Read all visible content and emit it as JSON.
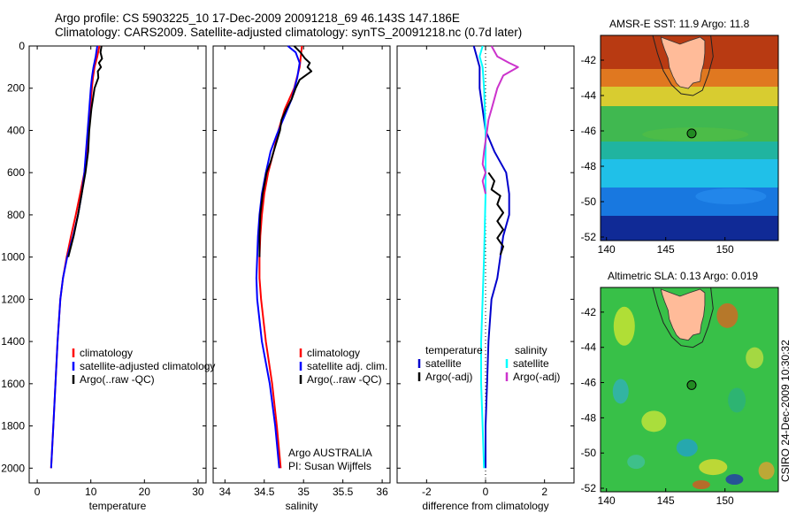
{
  "title_line1": "Argo profile: CS 5903225_10 17-Dec-2009 20091218_69 46.143S 147.186E",
  "title_line2": "Climatology: CARS2009. Satellite-adjusted climatology: synTS_20091218.nc (0.7d later)",
  "side_label": "CSIRO 24-Dec-2009 10:30:32",
  "colors": {
    "climatology": "#ff0000",
    "satellite": "#0000ff",
    "argo": "#000000",
    "temp_satellite_diff": "#0000cc",
    "sal_satellite_diff": "#00ffff",
    "sal_argo_diff": "#cc33cc",
    "argo_marker": "#228b22",
    "land": "#ffbb99"
  },
  "chart_data": [
    {
      "type": "line",
      "name": "temperature-panel",
      "xlabel": "temperature",
      "ylabel": "",
      "xlim": [
        -1.5,
        31.5
      ],
      "ylim": [
        2070,
        0
      ],
      "y_reversed": true,
      "xticks": [
        0,
        10,
        20,
        30
      ],
      "yticks": [
        0,
        200,
        400,
        600,
        800,
        1000,
        1200,
        1400,
        1600,
        1800,
        2000
      ],
      "legend": [
        "climatology",
        "satellite-adjusted climatology",
        "Argo(..raw -QC)"
      ],
      "series": [
        {
          "name": "climatology",
          "color": "#ff0000",
          "points": [
            [
              11.6,
              0
            ],
            [
              11.2,
              50
            ],
            [
              10.7,
              100
            ],
            [
              10.4,
              150
            ],
            [
              10.2,
              200
            ],
            [
              9.9,
              300
            ],
            [
              9.6,
              400
            ],
            [
              9.2,
              500
            ],
            [
              8.8,
              600
            ],
            [
              8.0,
              700
            ],
            [
              7.2,
              800
            ],
            [
              6.3,
              900
            ],
            [
              5.5,
              1000
            ],
            [
              4.8,
              1100
            ],
            [
              4.3,
              1200
            ],
            [
              3.8,
              1400
            ],
            [
              3.4,
              1600
            ],
            [
              3.0,
              1800
            ],
            [
              2.6,
              2000
            ]
          ]
        },
        {
          "name": "satellite-adjusted climatology",
          "color": "#0000ff",
          "points": [
            [
              11.2,
              0
            ],
            [
              10.9,
              50
            ],
            [
              10.5,
              100
            ],
            [
              10.2,
              150
            ],
            [
              10.0,
              200
            ],
            [
              9.7,
              300
            ],
            [
              9.4,
              400
            ],
            [
              9.1,
              500
            ],
            [
              8.8,
              600
            ],
            [
              8.3,
              700
            ],
            [
              7.6,
              800
            ],
            [
              6.7,
              900
            ],
            [
              5.6,
              1000
            ],
            [
              4.8,
              1100
            ],
            [
              4.3,
              1200
            ],
            [
              3.8,
              1400
            ],
            [
              3.4,
              1600
            ],
            [
              3.0,
              1800
            ],
            [
              2.6,
              2000
            ]
          ]
        },
        {
          "name": "Argo(..raw -QC)",
          "color": "#000000",
          "points": [
            [
              12.0,
              0
            ],
            [
              11.8,
              30
            ],
            [
              12.1,
              60
            ],
            [
              11.5,
              80
            ],
            [
              11.9,
              100
            ],
            [
              11.3,
              120
            ],
            [
              11.4,
              150
            ],
            [
              10.7,
              200
            ],
            [
              10.4,
              250
            ],
            [
              10.1,
              300
            ],
            [
              9.7,
              400
            ],
            [
              9.5,
              500
            ],
            [
              9.0,
              600
            ],
            [
              8.3,
              700
            ],
            [
              7.6,
              800
            ],
            [
              6.8,
              900
            ],
            [
              5.8,
              1000
            ]
          ]
        }
      ]
    },
    {
      "type": "line",
      "name": "salinity-panel",
      "xlabel": "salinity",
      "xlim": [
        33.85,
        36.1
      ],
      "ylim": [
        2070,
        0
      ],
      "y_reversed": true,
      "xticks": [
        34,
        34.5,
        35,
        35.5,
        36
      ],
      "legend": [
        "climatology",
        "satellite adj. clim.",
        "Argo(..raw -QC)"
      ],
      "annotation_line1": "Argo AUSTRALIA",
      "annotation_line2": "PI: Susan Wijffels",
      "series": [
        {
          "name": "climatology",
          "color": "#ff0000",
          "points": [
            [
              34.98,
              0
            ],
            [
              34.95,
              100
            ],
            [
              34.88,
              200
            ],
            [
              34.76,
              300
            ],
            [
              34.68,
              400
            ],
            [
              34.62,
              500
            ],
            [
              34.55,
              600
            ],
            [
              34.5,
              700
            ],
            [
              34.47,
              800
            ],
            [
              34.45,
              900
            ],
            [
              34.44,
              1000
            ],
            [
              34.44,
              1100
            ],
            [
              34.46,
              1200
            ],
            [
              34.52,
              1400
            ],
            [
              34.6,
              1600
            ],
            [
              34.66,
              1800
            ],
            [
              34.71,
              2000
            ]
          ]
        },
        {
          "name": "satellite adj. clim.",
          "color": "#0000ff",
          "points": [
            [
              34.8,
              0
            ],
            [
              34.9,
              30
            ],
            [
              34.95,
              80
            ],
            [
              34.92,
              150
            ],
            [
              34.85,
              250
            ],
            [
              34.76,
              330
            ],
            [
              34.66,
              420
            ],
            [
              34.58,
              500
            ],
            [
              34.52,
              600
            ],
            [
              34.47,
              700
            ],
            [
              34.44,
              800
            ],
            [
              34.42,
              900
            ],
            [
              34.41,
              1000
            ],
            [
              34.4,
              1100
            ],
            [
              34.41,
              1200
            ],
            [
              34.47,
              1400
            ],
            [
              34.57,
              1600
            ],
            [
              34.64,
              1800
            ],
            [
              34.69,
              2000
            ]
          ]
        },
        {
          "name": "Argo(..raw -QC)",
          "color": "#000000",
          "points": [
            [
              34.88,
              0
            ],
            [
              34.96,
              30
            ],
            [
              35.02,
              60
            ],
            [
              35.08,
              80
            ],
            [
              35.05,
              100
            ],
            [
              35.1,
              120
            ],
            [
              34.95,
              160
            ],
            [
              34.9,
              200
            ],
            [
              34.85,
              250
            ],
            [
              34.78,
              300
            ],
            [
              34.72,
              350
            ],
            [
              34.7,
              400
            ],
            [
              34.62,
              500
            ],
            [
              34.58,
              550
            ],
            [
              34.53,
              600
            ],
            [
              34.48,
              700
            ],
            [
              34.45,
              800
            ],
            [
              34.44,
              900
            ],
            [
              34.44,
              1000
            ]
          ]
        }
      ]
    },
    {
      "type": "line",
      "name": "difference-panel",
      "xlabel": "difference from climatology",
      "xlim": [
        -3.0,
        3.0
      ],
      "ylim": [
        2070,
        0
      ],
      "y_reversed": true,
      "xticks": [
        -2,
        0,
        2
      ],
      "legend_header_left": "temperature",
      "legend_header_right": "salinity",
      "legend": [
        "satellite",
        "Argo(-adj)",
        "satellite",
        "Argo(-adj)"
      ],
      "series": [
        {
          "name": "temperature satellite",
          "color": "#0000cc",
          "points": [
            [
              -0.4,
              0
            ],
            [
              -0.3,
              50
            ],
            [
              -0.2,
              100
            ],
            [
              -0.2,
              200
            ],
            [
              -0.1,
              300
            ],
            [
              0.0,
              400
            ],
            [
              0.3,
              500
            ],
            [
              0.7,
              600
            ],
            [
              0.8,
              700
            ],
            [
              0.8,
              800
            ],
            [
              0.6,
              900
            ],
            [
              0.5,
              1000
            ],
            [
              0.4,
              1100
            ],
            [
              0.2,
              1200
            ],
            [
              0.1,
              1400
            ],
            [
              0.05,
              1600
            ],
            [
              0.0,
              1800
            ],
            [
              0.0,
              2000
            ]
          ]
        },
        {
          "name": "temperature Argo(-adj)",
          "color": "#000000",
          "points": [
            [
              0.1,
              600
            ],
            [
              0.3,
              640
            ],
            [
              0.2,
              680
            ],
            [
              0.5,
              710
            ],
            [
              0.4,
              750
            ],
            [
              0.6,
              790
            ],
            [
              0.4,
              830
            ],
            [
              0.6,
              870
            ],
            [
              0.4,
              910
            ],
            [
              0.6,
              950
            ],
            [
              0.5,
              990
            ]
          ]
        },
        {
          "name": "salinity satellite",
          "color": "#00ffff",
          "points": [
            [
              -0.1,
              0
            ],
            [
              -0.2,
              50
            ],
            [
              -0.1,
              100
            ],
            [
              -0.05,
              200
            ],
            [
              0.0,
              400
            ],
            [
              0.0,
              700
            ],
            [
              -0.05,
              1000
            ],
            [
              -0.1,
              1200
            ],
            [
              -0.15,
              1400
            ],
            [
              -0.15,
              1600
            ],
            [
              -0.1,
              1800
            ],
            [
              -0.05,
              2000
            ]
          ]
        },
        {
          "name": "salinity Argo(-adj)",
          "color": "#cc33cc",
          "points": [
            [
              0.2,
              0
            ],
            [
              0.4,
              50
            ],
            [
              0.8,
              80
            ],
            [
              1.1,
              100
            ],
            [
              0.6,
              140
            ],
            [
              0.4,
              200
            ],
            [
              0.3,
              250
            ],
            [
              0.2,
              300
            ],
            [
              0.1,
              350
            ],
            [
              0.05,
              400
            ],
            [
              -0.05,
              500
            ],
            [
              -0.1,
              560
            ],
            [
              0.0,
              600
            ],
            [
              -0.1,
              640
            ],
            [
              0.0,
              700
            ]
          ]
        }
      ]
    },
    {
      "type": "heatmap",
      "name": "amsr-e-sst-map",
      "title": "AMSR-E SST: 11.9 Argo: 11.8",
      "xlim": [
        139.5,
        154.5
      ],
      "ylim": [
        -52.2,
        -40.6
      ],
      "xticks": [
        140,
        145,
        150
      ],
      "yticks": [
        -42,
        -44,
        -46,
        -48,
        -50,
        -52
      ],
      "argo_position": [
        147.186,
        -46.143
      ],
      "color_bands": [
        {
          "lat_top": -40.6,
          "lat_bottom": -42.5,
          "color": "#b83a12"
        },
        {
          "lat_top": -42.5,
          "lat_bottom": -43.5,
          "color": "#e07820"
        },
        {
          "lat_top": -43.5,
          "lat_bottom": -44.6,
          "color": "#d8cc30"
        },
        {
          "lat_top": -44.6,
          "lat_bottom": -46.6,
          "color": "#40b850"
        },
        {
          "lat_top": -46.6,
          "lat_bottom": -47.6,
          "color": "#20b4a0"
        },
        {
          "lat_top": -47.6,
          "lat_bottom": -49.2,
          "color": "#20c0e8"
        },
        {
          "lat_top": -49.2,
          "lat_bottom": -50.8,
          "color": "#1878e0"
        },
        {
          "lat_top": -50.8,
          "lat_bottom": -52.2,
          "color": "#102a96"
        }
      ]
    },
    {
      "type": "heatmap",
      "name": "altimetric-sla-map",
      "title": "Altimetric SLA: 0.13 Argo: 0.019",
      "xlim": [
        139.5,
        154.5
      ],
      "ylim": [
        -52.2,
        -40.6
      ],
      "xticks": [
        140,
        145,
        150
      ],
      "yticks": [
        -42,
        -44,
        -46,
        -48,
        -50,
        -52
      ],
      "argo_position": [
        147.186,
        -46.143
      ],
      "base_color": "#38c048"
    }
  ]
}
